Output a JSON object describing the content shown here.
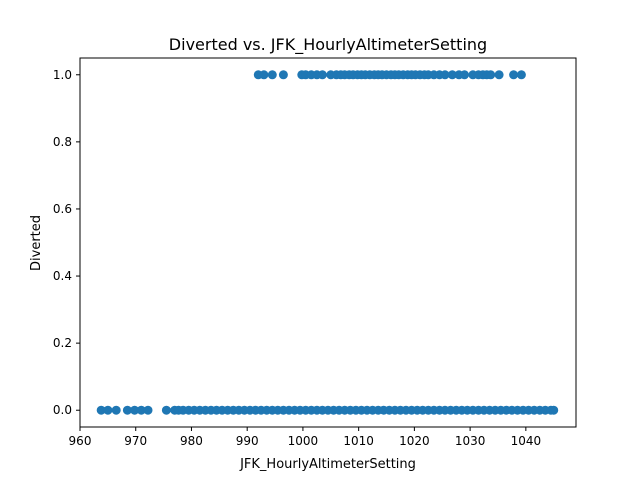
{
  "chart_data": {
    "type": "scatter",
    "title": "Diverted vs. JFK_HourlyAltimeterSetting",
    "xlabel": "JFK_HourlyAltimeterSetting",
    "ylabel": "Diverted",
    "xlim": [
      960,
      1049
    ],
    "ylim": [
      -0.05,
      1.05
    ],
    "xticks": [
      960,
      970,
      980,
      990,
      1000,
      1010,
      1020,
      1030,
      1040
    ],
    "yticks": [
      0.0,
      0.2,
      0.4,
      0.6,
      0.8,
      1.0
    ],
    "xtick_labels": [
      "960",
      "970",
      "980",
      "990",
      "1000",
      "1010",
      "1020",
      "1030",
      "1040"
    ],
    "ytick_labels": [
      "0.0",
      "0.2",
      "0.4",
      "0.6",
      "0.8",
      "1.0"
    ],
    "marker_color": "#1f77b4",
    "grid": false,
    "series": [
      {
        "values_y1_x": [
          992,
          993,
          994.5,
          996.5,
          999.8,
          1000.5,
          1001.5,
          1002.5,
          1003.5,
          1005,
          1006,
          1006.8,
          1007.5,
          1008.3,
          1009,
          1009.8,
          1010.5,
          1011.2,
          1012,
          1012.8,
          1013.5,
          1014.2,
          1015,
          1015.8,
          1016.5,
          1017.2,
          1018,
          1018.8,
          1019.5,
          1020.2,
          1021,
          1021.8,
          1022.5,
          1023.5,
          1024.5,
          1025.5,
          1026.8,
          1028,
          1029,
          1030.5,
          1031.5,
          1032.3,
          1033,
          1033.7,
          1035.2,
          1037.8,
          1039.2
        ],
        "values_y0_x": [
          963.8,
          965,
          966.5,
          968.5,
          969.8,
          971,
          972.2,
          975.5,
          977,
          977.7,
          978.5,
          979.5,
          980.5,
          981.5,
          982.5,
          983.5,
          984.5,
          985.5,
          986.5,
          987.5,
          988.5,
          989.5,
          990.5,
          991.5,
          992.5,
          993.5,
          994.5,
          995.5,
          996.5,
          997.5,
          998.5,
          999.5,
          1000.5,
          1001.5,
          1002.5,
          1003.5,
          1004.5,
          1005.5,
          1006.5,
          1007.5,
          1008.5,
          1009.5,
          1010.5,
          1011.5,
          1012.5,
          1013.5,
          1014.5,
          1015.5,
          1016.5,
          1017.5,
          1018.5,
          1019.5,
          1020.5,
          1021.5,
          1022.5,
          1023.5,
          1024.5,
          1025.5,
          1026.5,
          1027.5,
          1028.5,
          1029.5,
          1030.5,
          1031.5,
          1032.5,
          1033.5,
          1034.5,
          1035.5,
          1036.5,
          1037.5,
          1038.5,
          1039.5,
          1040.5,
          1041.5,
          1042.5,
          1043.5,
          1044.5,
          1045
        ]
      }
    ]
  }
}
